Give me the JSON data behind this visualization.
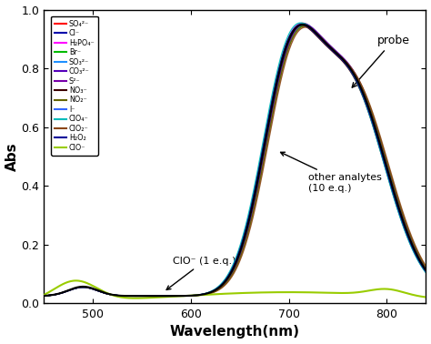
{
  "xlabel": "Wavelength(nm)",
  "ylabel": "Abs",
  "xlim": [
    450,
    840
  ],
  "ylim": [
    0.0,
    1.0
  ],
  "xticks": [
    500,
    600,
    700,
    800
  ],
  "yticks": [
    0.0,
    0.2,
    0.4,
    0.6,
    0.8,
    1.0
  ],
  "legend_labels": [
    "SO₄²⁻",
    "Cl⁻",
    "H₂PO₄⁻",
    "Br⁻",
    "SO₃²⁻",
    "CO₃²⁻",
    "S²⁻",
    "NO₃⁻",
    "NO₂⁻",
    "I⁻",
    "ClO₄⁻",
    "ClO₂⁻",
    "H₂O₂",
    "ClO⁻"
  ],
  "legend_colors": [
    "#ff0000",
    "#0000aa",
    "#ff00ff",
    "#00bb00",
    "#1e90ff",
    "#5500bb",
    "#7700aa",
    "#3b0000",
    "#666600",
    "#3366ff",
    "#00bbbb",
    "#8b4513",
    "#000099",
    "#99cc00"
  ],
  "probe_color": "#000000",
  "clo_color": "#99cc00",
  "annotation_probe": "probe",
  "annotation_other": "other analytes\n(10 e.q.)",
  "annotation_clo": "ClO⁻ (1 e.q.)"
}
